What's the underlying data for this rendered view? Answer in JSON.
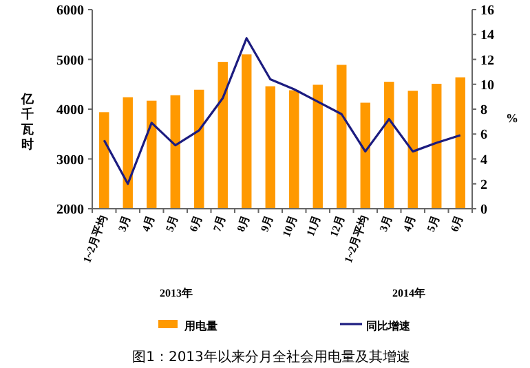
{
  "chart_data": {
    "type": "bar",
    "title": "图1：2013年以来分月全社会用电量及其增速",
    "ylabel": "亿千瓦时",
    "y2label": "%",
    "categories": [
      "1~2月平均",
      "3月",
      "4月",
      "5月",
      "6月",
      "7月",
      "8月",
      "9月",
      "10月",
      "11月",
      "12月",
      "1~2月平均",
      "3月",
      "4月",
      "5月",
      "6月"
    ],
    "ylim": [
      2000,
      6000
    ],
    "yticks": [
      2000,
      3000,
      4000,
      5000,
      6000
    ],
    "y2lim": [
      0,
      16
    ],
    "y2ticks": [
      0,
      2,
      4,
      6,
      8,
      10,
      12,
      14,
      16
    ],
    "series": [
      {
        "name": "用电量",
        "color": "#ff9900",
        "values": [
          3940,
          4240,
          4170,
          4280,
          4390,
          4950,
          5100,
          4460,
          4380,
          4490,
          4890,
          4130,
          4550,
          4370,
          4510,
          4640
        ]
      },
      {
        "name": "同比增速",
        "type": "line",
        "axis": "y2",
        "color": "#1c1c80",
        "values": [
          5.5,
          2.0,
          6.9,
          5.1,
          6.3,
          8.9,
          13.7,
          10.4,
          9.6,
          8.6,
          7.6,
          4.6,
          7.2,
          4.6,
          5.3,
          5.9
        ]
      }
    ],
    "annotations": [
      "2013年",
      "2014年"
    ],
    "legend": "bottom",
    "grid": false
  }
}
